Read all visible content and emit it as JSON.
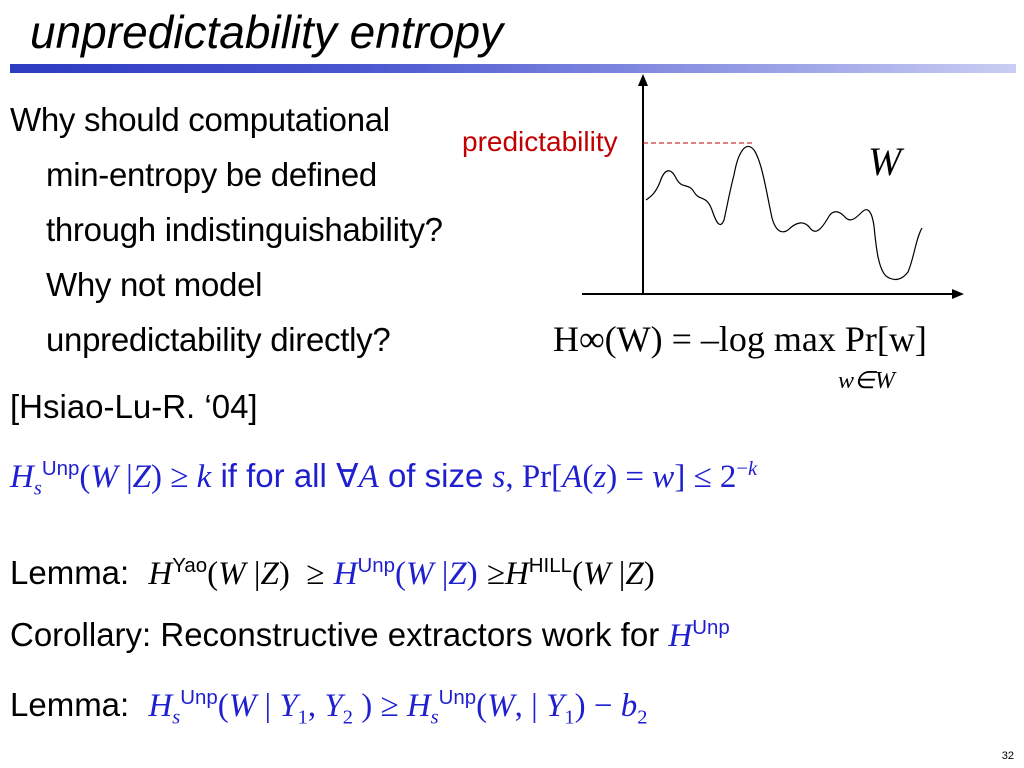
{
  "title": "unpredictability entropy",
  "intro": {
    "lines": [
      "Why should computational",
      "min-entropy be defined",
      "through indistinguishability?",
      "Why not model",
      "unpredictability  directly?"
    ]
  },
  "diagram": {
    "predictability_label": "predictability",
    "curve_label": "W",
    "formula_main": "H∞(W) = –log max Pr[w]",
    "formula_sub": "w∈W"
  },
  "citation": "[Hsiao-Lu-R. ‘04]",
  "definition": {
    "text_if": "if for all",
    "text_of_size": "of size",
    "sup_unp": "Unp"
  },
  "lemma1": {
    "label": "Lemma:",
    "sup_yao": "Yao",
    "sup_unp": "Unp",
    "sup_hill": "HILL"
  },
  "corollary": {
    "text": "Corollary: Reconstructive extractors work for",
    "sup_unp": "Unp"
  },
  "lemma2": {
    "label": "Lemma:",
    "sup_unp": "Unp"
  },
  "slide_number": "32",
  "colors": {
    "blue": "#1f1fd0",
    "red": "#c00000",
    "rule": "#2d3bc2"
  }
}
